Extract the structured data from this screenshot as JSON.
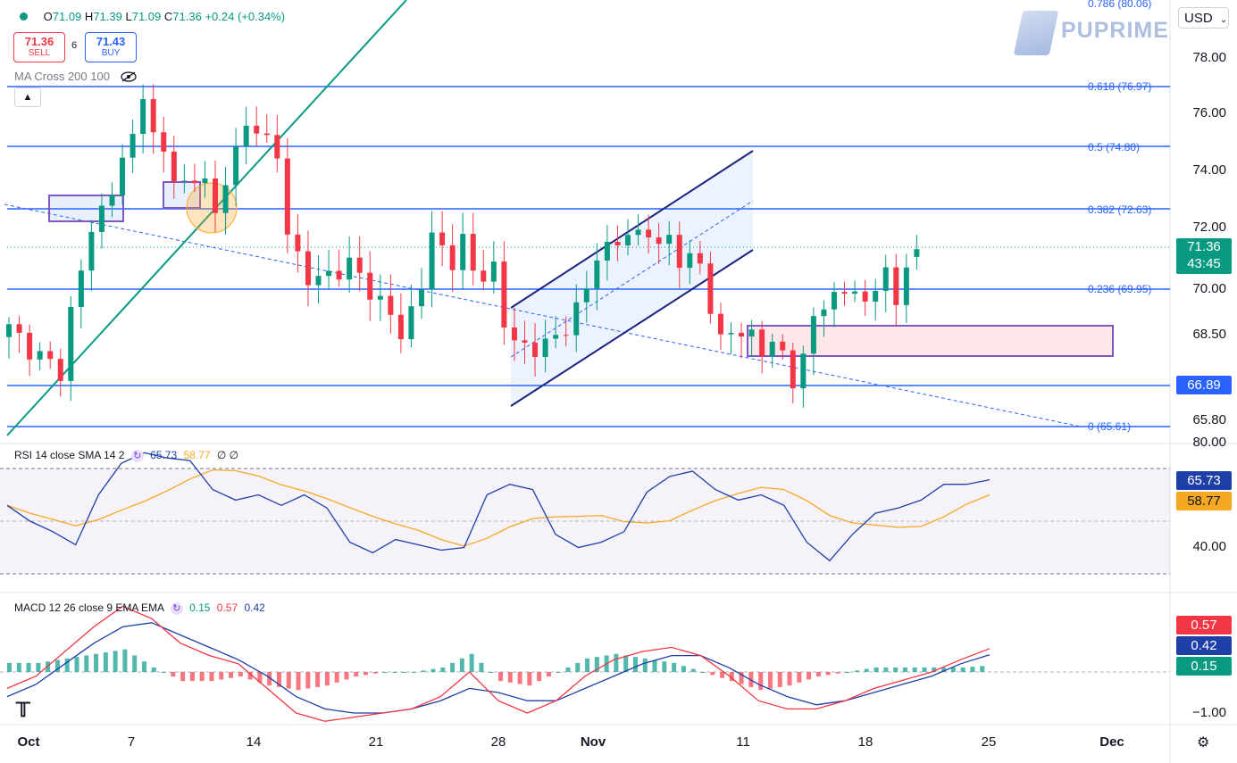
{
  "header": {
    "ohlc": [
      {
        "label": "O",
        "value": "71.09"
      },
      {
        "label": "H",
        "value": "71.39"
      },
      {
        "label": "L",
        "value": "71.09"
      },
      {
        "label": "C",
        "value": "71.36"
      }
    ],
    "change": "+0.24 (+0.34%)",
    "sell": {
      "price": "71.36",
      "label": "SELL"
    },
    "spread": "6",
    "buy": {
      "price": "71.43",
      "label": "BUY"
    },
    "ma_label": "MA Cross 200 100",
    "eye_icon": "eye-hidden-icon",
    "collapse_icon": "chevron-up-icon"
  },
  "currency": {
    "value": "USD",
    "icon": "chevron-down-icon"
  },
  "brand": {
    "name": "PUPRIME"
  },
  "colors": {
    "up": "#089981",
    "down": "#f23645",
    "fib": "#2962ff",
    "trend": "#089981",
    "channel": "#1a237e",
    "rsi": "#1e3fa8",
    "rsi_sma": "#f7a823",
    "macd": "#1e3fa8",
    "signal": "#f23645"
  },
  "price_axis": {
    "ticks": [
      "80.06",
      "78.00",
      "76.00",
      "74.00",
      "72.00",
      "70.00",
      "68.50",
      "65.80"
    ],
    "current_price": "71.36",
    "countdown": "43:45",
    "support_tag": "66.89"
  },
  "fib_levels": [
    {
      "ratio": "0.786",
      "price": "80.06",
      "label": "0.786 (80.06)"
    },
    {
      "ratio": "0.618",
      "price": "76.97",
      "label": "0.618 (76.97)"
    },
    {
      "ratio": "0.5",
      "price": "74.80",
      "label": "0.5 (74.80)"
    },
    {
      "ratio": "0.382",
      "price": "72.63",
      "label": "0.382 (72.63)"
    },
    {
      "ratio": "0.236",
      "price": "69.95",
      "label": "0.236 (69.95)"
    },
    {
      "ratio": "0",
      "price": "65.61",
      "label": "0 (65.61)"
    }
  ],
  "rsi": {
    "label": "RSI 14 close SMA 14 2",
    "value": "65.73",
    "sma_value": "58.77",
    "icons": [
      "cycle-icon",
      "null-icon",
      "null-icon"
    ],
    "axis": [
      "80.00",
      "40.00"
    ]
  },
  "macd": {
    "label": "MACD 12 26 close 9 EMA EMA",
    "hist": "0.15",
    "macd_value": "0.57",
    "signal_value": "0.42",
    "axis": [
      "−1.00"
    ]
  },
  "time_axis": [
    "Oct",
    "7",
    "14",
    "21",
    "28",
    "Nov",
    "11",
    "18",
    "25",
    "Dec"
  ],
  "footer": {
    "logo": "tradingview-logo-icon",
    "settings_icon": "settings-icon"
  },
  "chart_data": {
    "type": "candlestick",
    "symbol_currency": "USD",
    "x_labels": [
      "Oct",
      "7",
      "14",
      "21",
      "28",
      "Nov",
      "11",
      "18",
      "25",
      "Dec"
    ],
    "ylim": [
      65.0,
      80.3
    ],
    "last": {
      "open": 71.09,
      "high": 71.39,
      "low": 71.09,
      "close": 71.36
    },
    "close_path": [
      [
        0,
        68.6
      ],
      [
        3,
        67.6
      ],
      [
        5,
        67.1
      ],
      [
        6,
        69.2
      ],
      [
        8,
        72.0
      ],
      [
        10,
        73.5
      ],
      [
        12,
        75.2
      ],
      [
        13,
        77.0
      ],
      [
        14,
        75.2
      ],
      [
        16,
        74.0
      ],
      [
        17,
        73.6
      ],
      [
        19,
        73.8
      ],
      [
        20,
        72.5
      ],
      [
        21,
        73.9
      ],
      [
        23,
        75.5
      ],
      [
        24,
        75.8
      ],
      [
        26,
        74.4
      ],
      [
        27,
        72.1
      ],
      [
        29,
        70.2
      ],
      [
        31,
        70.5
      ],
      [
        33,
        70.8
      ],
      [
        35,
        70.0
      ],
      [
        37,
        69.0
      ],
      [
        38,
        68.4
      ],
      [
        40,
        70.1
      ],
      [
        41,
        71.8
      ],
      [
        43,
        71.0
      ],
      [
        44,
        71.6
      ],
      [
        45,
        70.5
      ],
      [
        47,
        70.7
      ],
      [
        48,
        68.6
      ],
      [
        50,
        68.0
      ],
      [
        51,
        67.8
      ],
      [
        53,
        68.3
      ],
      [
        55,
        69.2
      ],
      [
        56,
        69.9
      ],
      [
        57,
        71.3
      ],
      [
        59,
        71.5
      ],
      [
        60,
        71.9
      ],
      [
        62,
        72.0
      ],
      [
        63,
        71.3
      ],
      [
        64,
        71.8
      ],
      [
        65,
        71.1
      ],
      [
        66,
        70.9
      ],
      [
        67,
        70.8
      ],
      [
        68,
        69.4
      ],
      [
        69,
        68.2
      ],
      [
        70,
        68.5
      ],
      [
        71,
        68.3
      ],
      [
        72,
        68.5
      ],
      [
        73,
        67.9
      ],
      [
        75,
        67.8
      ],
      [
        76,
        66.9
      ],
      [
        77,
        67.4
      ],
      [
        78,
        69.0
      ],
      [
        79,
        69.5
      ],
      [
        80,
        69.7
      ],
      [
        81,
        69.9
      ],
      [
        82,
        69.8
      ],
      [
        83,
        69.5
      ],
      [
        84,
        70.2
      ],
      [
        85,
        70.4
      ],
      [
        86,
        69.4
      ],
      [
        87,
        71.09
      ],
      [
        88,
        71.36
      ]
    ],
    "rsi_series": [
      56,
      50,
      46,
      41,
      60,
      72,
      76,
      74,
      73,
      62,
      58,
      60,
      56,
      60,
      55,
      42,
      38,
      43,
      41,
      39,
      40,
      60,
      64,
      62,
      45,
      40,
      42,
      46,
      61,
      67,
      69,
      62,
      58,
      60,
      56,
      42,
      35,
      45,
      53,
      55,
      58,
      64,
      64,
      65.73
    ],
    "macd_series": [
      -0.4,
      -0.1,
      0.5,
      1.1,
      1.6,
      1.3,
      0.7,
      0.4,
      0.2,
      -0.4,
      -1.0,
      -1.2,
      -1.1,
      -1.0,
      -0.9,
      -0.6,
      0.0,
      -0.7,
      -1.0,
      -0.7,
      -0.1,
      0.3,
      0.5,
      0.6,
      0.4,
      -0.1,
      -0.7,
      -0.9,
      -0.9,
      -0.7,
      -0.4,
      -0.2,
      0.0,
      0.3,
      0.57
    ],
    "signal_series": [
      -0.6,
      -0.3,
      0.2,
      0.7,
      1.1,
      1.2,
      0.9,
      0.6,
      0.3,
      -0.1,
      -0.6,
      -0.9,
      -1.0,
      -1.0,
      -0.9,
      -0.7,
      -0.4,
      -0.5,
      -0.7,
      -0.7,
      -0.4,
      -0.1,
      0.2,
      0.4,
      0.4,
      0.1,
      -0.3,
      -0.6,
      -0.8,
      -0.7,
      -0.5,
      -0.3,
      -0.1,
      0.2,
      0.42
    ]
  }
}
